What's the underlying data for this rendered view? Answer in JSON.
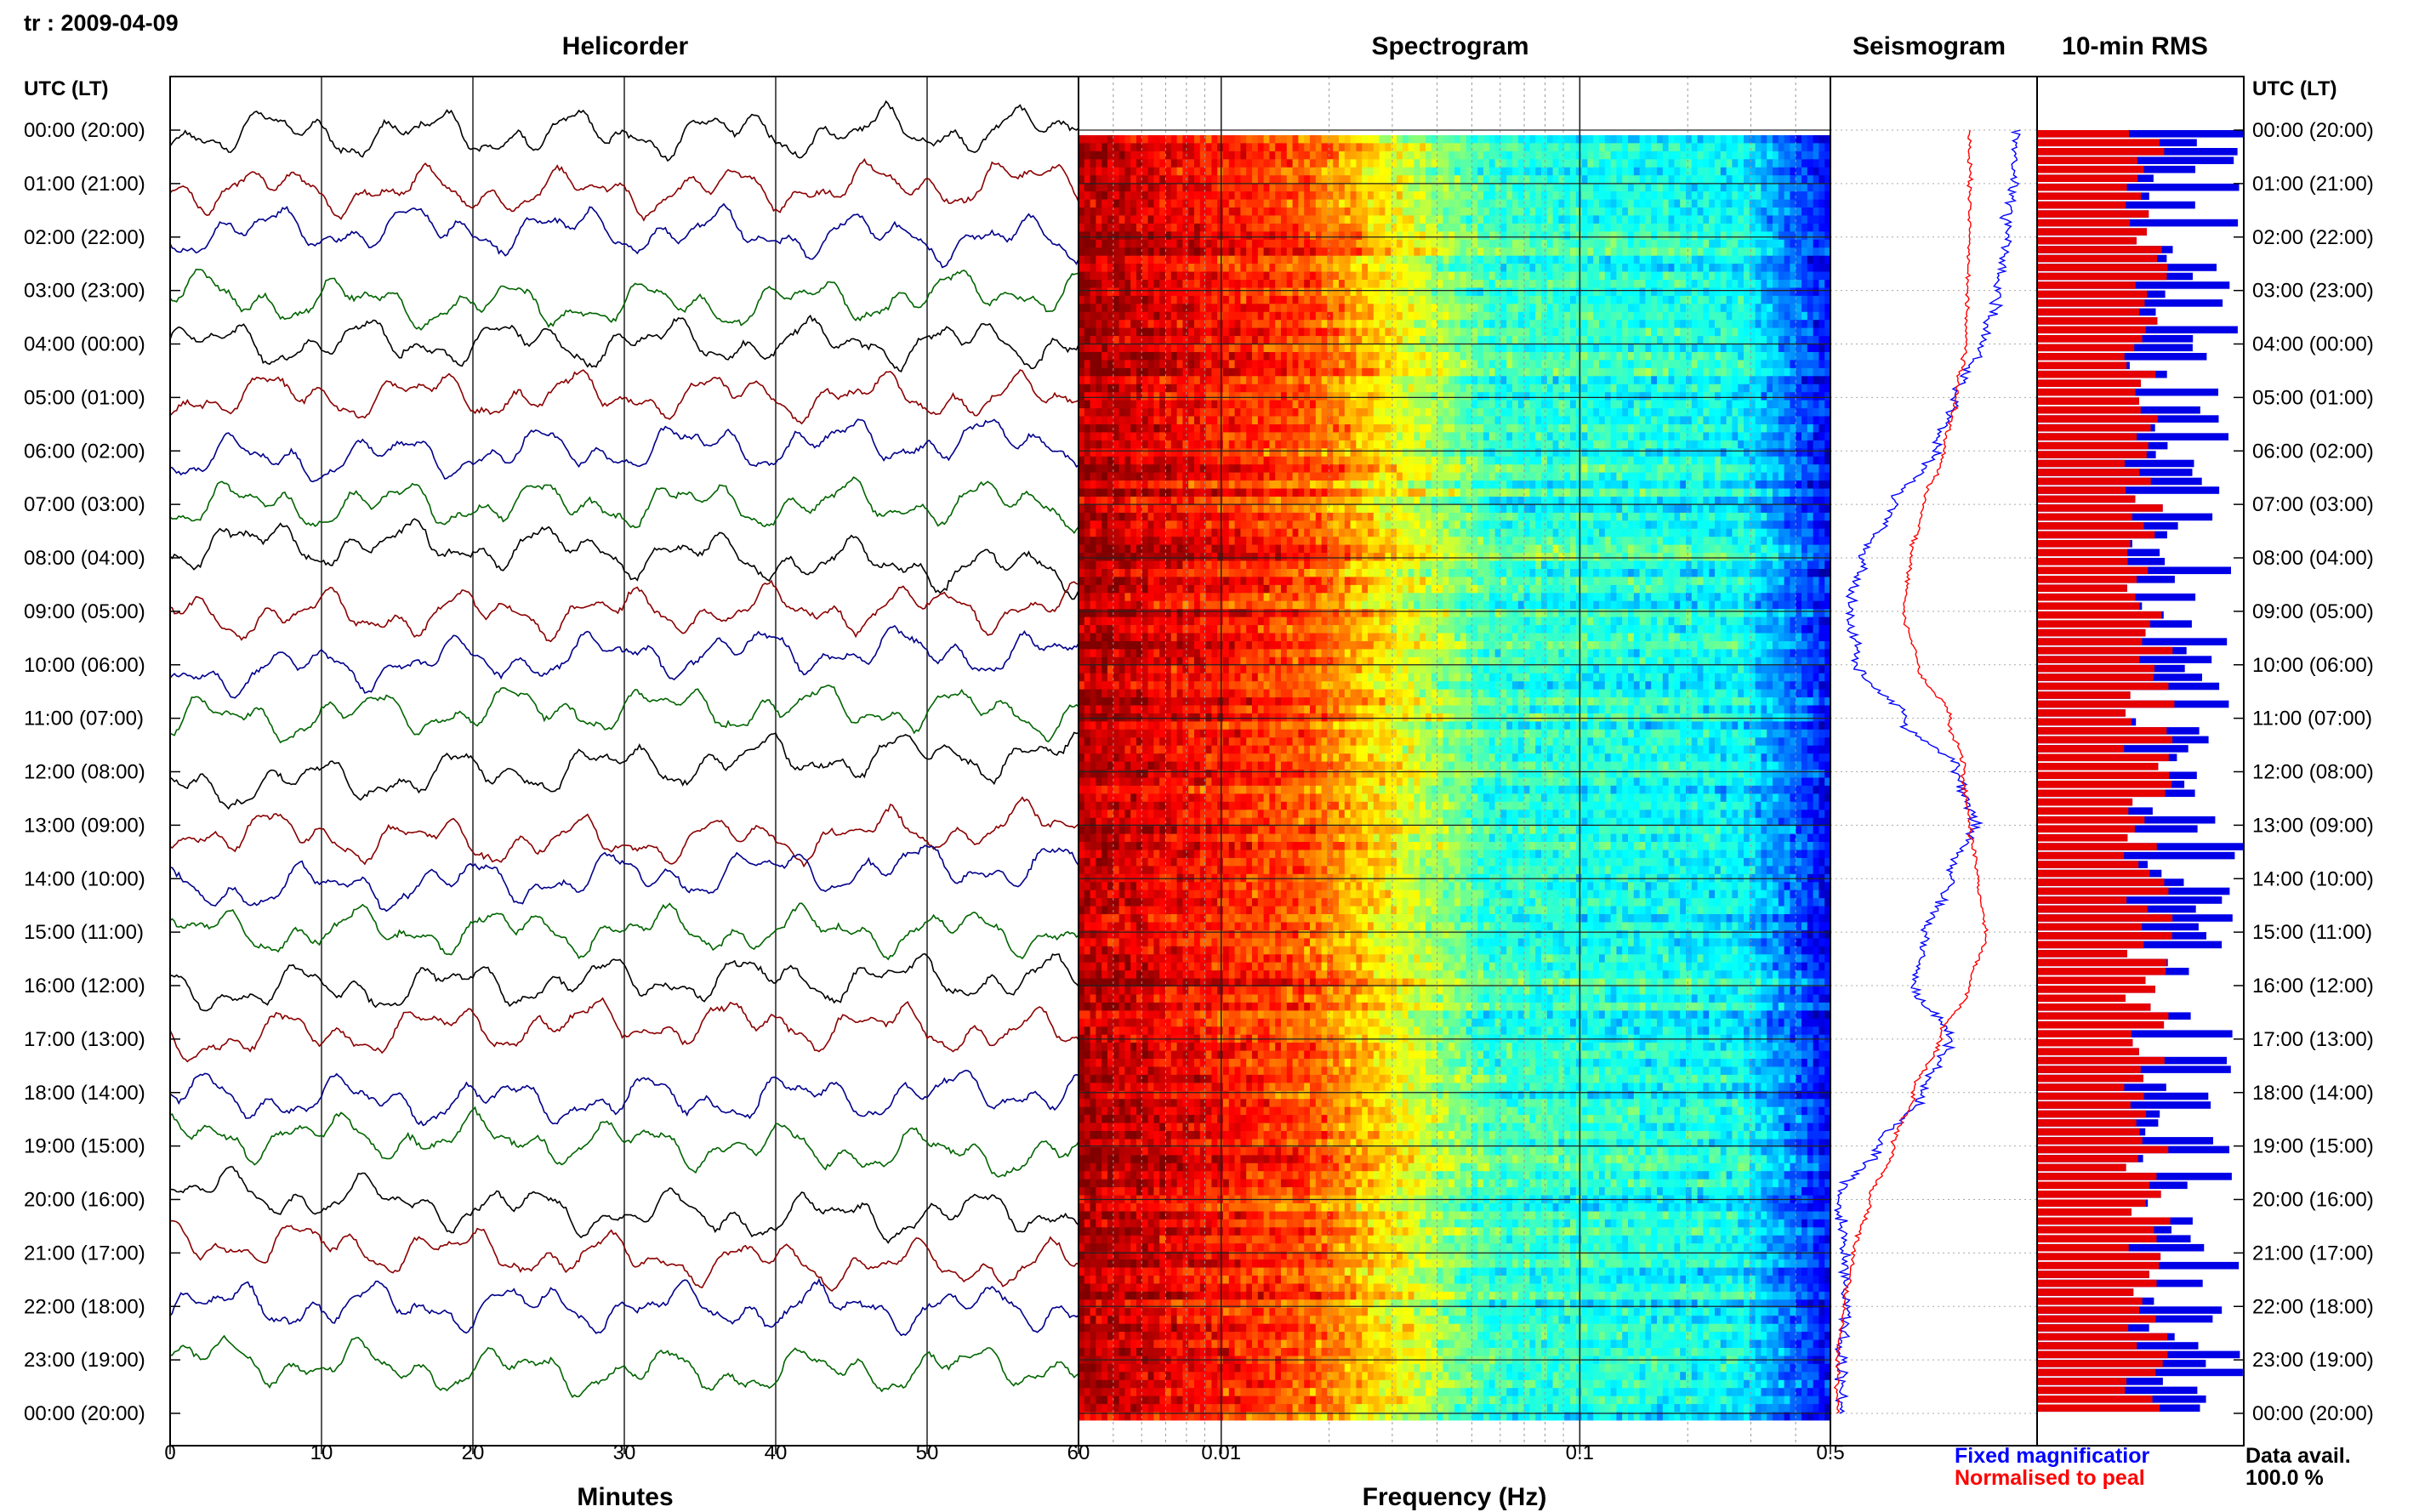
{
  "station_title": "tr : 2009-04-09",
  "panels": {
    "helicorder": "Helicorder",
    "spectrogram": "Spectrogram",
    "seismogram": "Seismogram",
    "rms": "10-min RMS"
  },
  "axis_headers": {
    "left": "UTC (LT)",
    "right": "UTC (LT)"
  },
  "footer": {
    "minutes_label": "Minutes",
    "frequency_label": "Frequency (Hz)",
    "legend_fixed": "Fixed magnificatior",
    "legend_normalised": "Normalised to peal",
    "data_avail_label": "Data avail.",
    "data_avail_value": "100.0 %"
  },
  "colors": {
    "trace_cycle": [
      "#000000",
      "#8b0000",
      "#00008b",
      "#006400"
    ],
    "fixed": "#0000ff",
    "normalised": "#ff0000",
    "rms_red": "#e60000",
    "rms_blue": "#0000e6"
  },
  "chart_data": {
    "type": "heatmap",
    "hours": [
      "00:00 (20:00)",
      "01:00 (21:00)",
      "02:00 (22:00)",
      "03:00 (23:00)",
      "04:00 (00:00)",
      "05:00 (01:00)",
      "06:00 (02:00)",
      "07:00 (03:00)",
      "08:00 (04:00)",
      "09:00 (05:00)",
      "10:00 (06:00)",
      "11:00 (07:00)",
      "12:00 (08:00)",
      "13:00 (09:00)",
      "14:00 (10:00)",
      "15:00 (11:00)",
      "16:00 (12:00)",
      "17:00 (13:00)",
      "18:00 (14:00)",
      "19:00 (15:00)",
      "20:00 (16:00)",
      "21:00 (17:00)",
      "22:00 (18:00)",
      "23:00 (19:00)",
      "00:00 (20:00)"
    ],
    "minutes_ticks": [
      "0",
      "10",
      "20",
      "30",
      "40",
      "50",
      "60"
    ],
    "frequency_ticks": [
      "60",
      "0.01",
      "0.1",
      "0.5"
    ],
    "frequency_range_hz": [
      0.004,
      0.5
    ],
    "frequency_scale": "log",
    "seismogram_fixed_profile": [
      0.92,
      0.9,
      0.86,
      0.82,
      0.74,
      0.6,
      0.5,
      0.3,
      0.15,
      0.08,
      0.12,
      0.35,
      0.62,
      0.7,
      0.58,
      0.46,
      0.4,
      0.58,
      0.45,
      0.22,
      0.02,
      0.05,
      0.06,
      0.04,
      0.03
    ],
    "seismogram_normalised_profile": [
      0.68,
      0.68,
      0.68,
      0.67,
      0.66,
      0.61,
      0.55,
      0.45,
      0.38,
      0.35,
      0.42,
      0.58,
      0.65,
      0.68,
      0.72,
      0.76,
      0.68,
      0.53,
      0.4,
      0.3,
      0.18,
      0.1,
      0.05,
      0.02,
      0.02
    ],
    "rms_scale_max": 1.0,
    "data_availability_percent": 100.0
  }
}
